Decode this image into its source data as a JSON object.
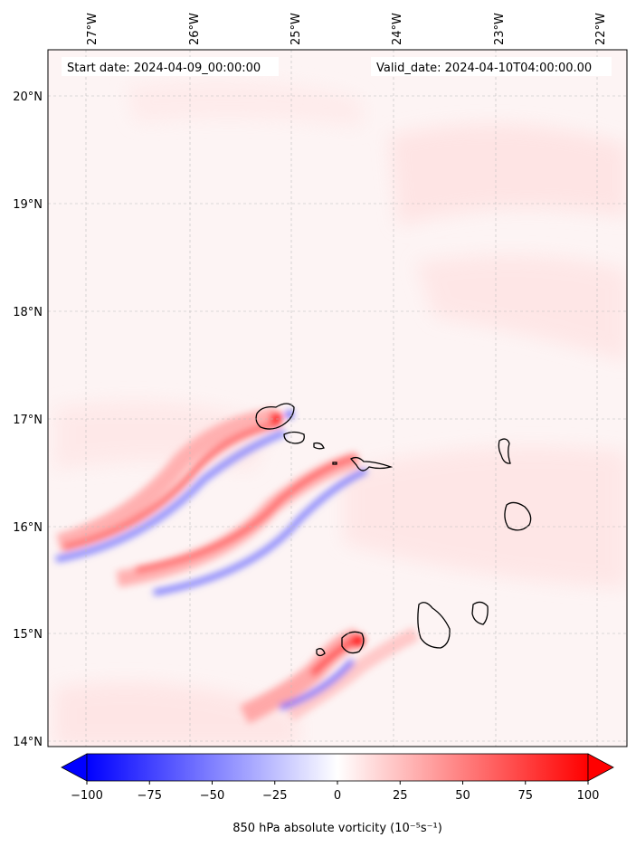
{
  "header": {
    "start_date": "Start date: 2024-04-09_00:00:00",
    "valid_date": "Valid_date: 2024-04-10T04:00:00.00"
  },
  "map": {
    "lon_ticks": [
      "27°W",
      "26°W",
      "25°W",
      "24°W",
      "23°W",
      "22°W"
    ],
    "lat_ticks": [
      "20°N",
      "19°N",
      "18°N",
      "17°N",
      "16°N",
      "15°N",
      "14°N"
    ],
    "gridlines": true
  },
  "colorbar": {
    "ticks": [
      "−100",
      "−75",
      "−50",
      "−25",
      "0",
      "25",
      "50",
      "75",
      "100"
    ],
    "min": -100,
    "max": 100,
    "label": "850 hPa absolute vorticity (10⁻⁵s⁻¹)",
    "colors": {
      "negative": "#0000ff",
      "positive": "#ff0000",
      "neutral": "#ffffff"
    }
  }
}
